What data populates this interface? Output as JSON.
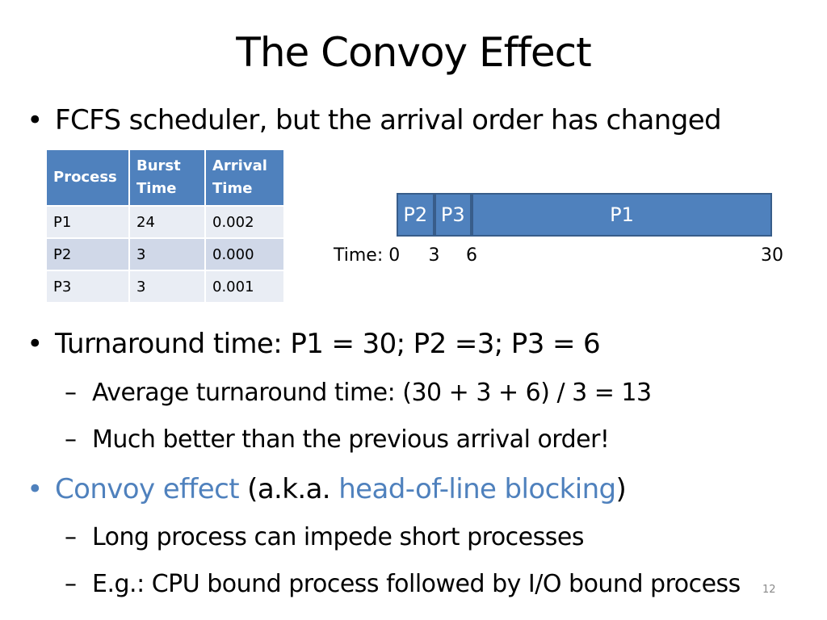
{
  "title": "The Convoy Effect",
  "bullets": {
    "fcfs": "FCFS scheduler, but the arrival order has changed",
    "turnaround": "Turnaround time: P1 = 30; P2 =3; P3 = 6",
    "avg": "Average turnaround time: (30 + 3 + 6) / 3 = 13",
    "better": "Much better than the previous arrival order!",
    "convoy_term": "Convoy effect",
    "aka_open": " (a.k.a. ",
    "hol_term": "head-of-line blocking",
    "aka_close": ")",
    "long": "Long process can impede short processes",
    "eg": "E.g.: CPU bound process followed by I/O bound process"
  },
  "bullet_marker": "•",
  "sub_marker": "–",
  "table": {
    "headers": [
      "Process",
      "Burst Time",
      "Arrival Time"
    ],
    "rows": [
      [
        "P1",
        "24",
        "0.002"
      ],
      [
        "P2",
        "3",
        "0.000"
      ],
      [
        "P3",
        "3",
        "0.001"
      ]
    ]
  },
  "gantt": {
    "segments": [
      {
        "label": "P2",
        "start": 0,
        "end": 3
      },
      {
        "label": "P3",
        "start": 3,
        "end": 6
      },
      {
        "label": "P1",
        "start": 6,
        "end": 30
      }
    ],
    "time_prefix": "Time: 0",
    "ticks": [
      "3",
      "6",
      "30"
    ]
  },
  "page_number": "12",
  "colors": {
    "accent": "#4f81bd",
    "table_header": "#4f81bd",
    "table_row": "#e9edf4",
    "table_row_alt": "#d0d8e8"
  }
}
